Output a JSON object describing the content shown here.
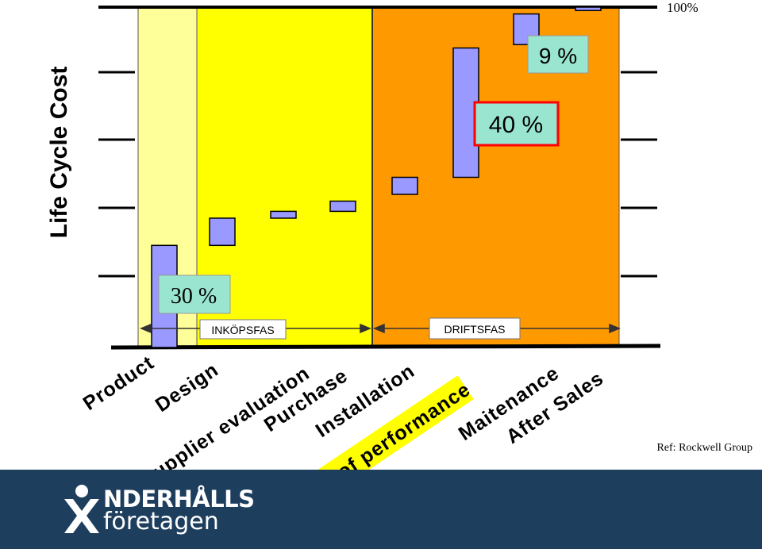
{
  "chart_data": {
    "type": "bar",
    "title": "Life Cycle Cost",
    "ylabel": "Life Cycle Cost",
    "ylim": [
      0,
      100
    ],
    "ymax_label": "100%",
    "categories": [
      "Product",
      "Design",
      "Supplier evaluation",
      "Purchase",
      "Installation",
      "Lack of performance",
      "Maitenance",
      "After Sales"
    ],
    "bars": [
      {
        "category": "Product",
        "start": 0,
        "end": 30
      },
      {
        "category": "Design",
        "start": 30,
        "end": 38
      },
      {
        "category": "Supplier evaluation",
        "start": 38,
        "end": 40
      },
      {
        "category": "Purchase",
        "start": 40,
        "end": 43
      },
      {
        "category": "Installation",
        "start": 45,
        "end": 50
      },
      {
        "category": "Lack of performance",
        "start": 50,
        "end": 88
      },
      {
        "category": "Maitenance",
        "start": 89,
        "end": 98
      },
      {
        "category": "After Sales",
        "start": 99,
        "end": 100
      }
    ],
    "phases": [
      {
        "label": "INKÖPSFAS",
        "color": "#ffff00"
      },
      {
        "label": "DRIFTSFAS",
        "color": "#ff9900"
      }
    ],
    "annotations": [
      "30 %",
      "40 %",
      "9 %"
    ],
    "highlight_category": "Lack of performance",
    "colors": {
      "bar_fill": "#9999ff",
      "phase_inkop": "#ffff00",
      "phase_drift": "#ff9900",
      "product_band": "#ffff99",
      "annotation_box": "#99e5d0",
      "highlight_border": "#ff0000"
    }
  },
  "reference": "Ref: Rockwell Group",
  "logo": {
    "line1": "NDERHÅLLS",
    "line2": "företagen",
    "icon": "person-x-icon"
  }
}
